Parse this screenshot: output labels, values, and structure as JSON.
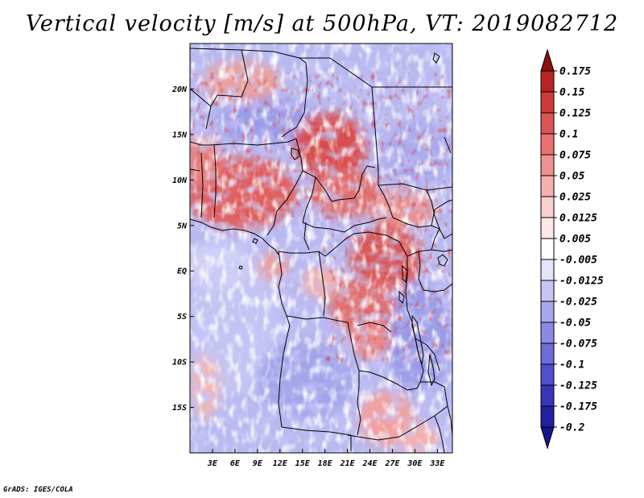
{
  "title": "Vertical velocity [m/s] at 500hPa, VT: 2019082712",
  "credit": "GrADS: IGES/COLA",
  "map": {
    "lon_range": [
      0,
      35
    ],
    "lat_range": [
      -20,
      25
    ],
    "lat_ticks": [
      {
        "value": 20,
        "label": "20N"
      },
      {
        "value": 15,
        "label": "15N"
      },
      {
        "value": 10,
        "label": "10N"
      },
      {
        "value": 5,
        "label": "5N"
      },
      {
        "value": 0,
        "label": "EQ"
      },
      {
        "value": -5,
        "label": "5S"
      },
      {
        "value": -10,
        "label": "10S"
      },
      {
        "value": -15,
        "label": "15S"
      }
    ],
    "lon_ticks": [
      {
        "value": 3,
        "label": "3E"
      },
      {
        "value": 6,
        "label": "6E"
      },
      {
        "value": 9,
        "label": "9E"
      },
      {
        "value": 12,
        "label": "12E"
      },
      {
        "value": 15,
        "label": "15E"
      },
      {
        "value": 18,
        "label": "18E"
      },
      {
        "value": 21,
        "label": "21E"
      },
      {
        "value": 24,
        "label": "24E"
      },
      {
        "value": 27,
        "label": "27E"
      },
      {
        "value": 30,
        "label": "30E"
      },
      {
        "value": 33,
        "label": "33E"
      }
    ]
  },
  "colorbar": {
    "levels": [
      {
        "label": "0.175",
        "color": "#a01a1a"
      },
      {
        "label": "0.15",
        "color": "#b82424"
      },
      {
        "label": "0.125",
        "color": "#cc3a3a"
      },
      {
        "label": "0.1",
        "color": "#dc5454"
      },
      {
        "label": "0.075",
        "color": "#e87272"
      },
      {
        "label": "0.05",
        "color": "#f09090"
      },
      {
        "label": "0.025",
        "color": "#f6b0b0"
      },
      {
        "label": "0.0125",
        "color": "#fbd0d0"
      },
      {
        "label": "0.005",
        "color": "#fde8e8"
      },
      {
        "label": "-0.005",
        "color": "#ffffff"
      },
      {
        "label": "-0.0125",
        "color": "#e4e4fb"
      },
      {
        "label": "-0.025",
        "color": "#c6c6f5"
      },
      {
        "label": "-0.05",
        "color": "#a8a8ee"
      },
      {
        "label": "-0.075",
        "color": "#8a8ae6"
      },
      {
        "label": "-0.1",
        "color": "#6c6cdc"
      },
      {
        "label": "-0.125",
        "color": "#5050cc"
      },
      {
        "label": "-0.175",
        "color": "#3636b8"
      },
      {
        "label": "-0.2",
        "color": "#2020a0"
      }
    ],
    "top_color": "#8c1010",
    "bottom_color": "#14148c"
  }
}
